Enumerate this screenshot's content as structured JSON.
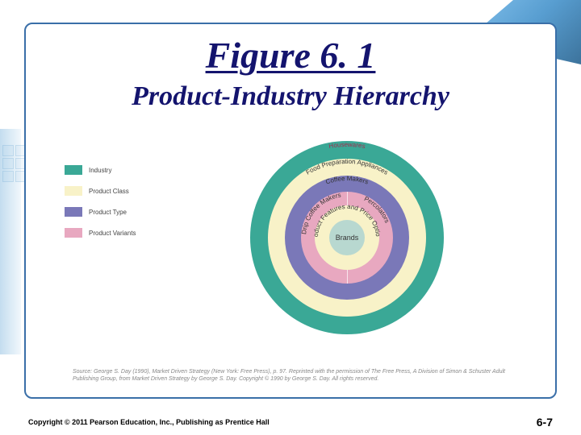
{
  "title": {
    "main": "Figure 6. 1",
    "sub": "Product-Industry Hierarchy"
  },
  "rings": [
    {
      "label": "Housewares",
      "radius": 120,
      "fill": "#3aa896",
      "labelColor": "#a03050"
    },
    {
      "label": "Food Preparation Appliances",
      "radius": 98,
      "fill": "#f8f2c8",
      "labelColor": "#333"
    },
    {
      "label": "Coffee Makers",
      "radius": 77,
      "fill": "#7a78b8",
      "labelColor": "#333"
    },
    {
      "label_left": "Drip Coffee Makers",
      "label_right": "Percolators",
      "radius": 57,
      "fill": "#e8a8c0",
      "labelColor": "#333"
    },
    {
      "label": "Product Features and Price Options",
      "radius": 40,
      "fill": "#f8f2c8",
      "labelColor": "#333"
    },
    {
      "label": "Brands",
      "radius": 22,
      "fill": "#b8d8d0",
      "labelColor": "#333"
    }
  ],
  "legend": [
    {
      "label": "Industry",
      "color": "#3aa896"
    },
    {
      "label": "Product Class",
      "color": "#f8f2c8"
    },
    {
      "label": "Product Type",
      "color": "#7a78b8"
    },
    {
      "label": "Product Variants",
      "color": "#e8a8c0"
    }
  ],
  "source": "Source: George S. Day (1990), Market Driven Strategy (New York: Free Press), p. 97. Reprinted with the permission of The Free Press, A Division of Simon & Schuster Adult Publishing Group, from Market Driven Strategy by George S. Day. Copyright © 1990 by George S. Day. All rights reserved.",
  "footer": {
    "copyright": "Copyright © 2011 Pearson Education, Inc., Publishing as Prentice Hall",
    "page": "6-7"
  },
  "style": {
    "slide_border_color": "#3a6fa8",
    "title_color": "#14146e"
  }
}
